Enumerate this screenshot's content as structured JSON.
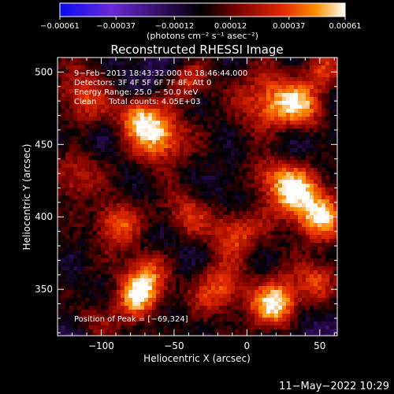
{
  "chart_data": {
    "type": "heatmap",
    "title": "Reconstructed RHESSI Image",
    "xlabel": "Heliocentric X (arcsec)",
    "ylabel": "Heliocentric Y (arcsec)",
    "xlim": [
      -130,
      62
    ],
    "ylim": [
      318,
      510
    ],
    "x_ticks": [
      -100,
      -50,
      0,
      50
    ],
    "x_tick_labels": [
      "−100",
      "−50",
      "0",
      "50"
    ],
    "y_ticks": [
      350,
      400,
      450,
      500
    ],
    "y_tick_labels": [
      "350",
      "400",
      "450",
      "500"
    ],
    "colorbar": {
      "ticks": [
        -0.00061,
        -0.00037,
        -0.00012,
        0.00012,
        0.00037,
        0.00061
      ],
      "tick_labels": [
        "−0.00061",
        "−0.00037",
        "−0.00012",
        "0.00012",
        "0.00037",
        "0.00061"
      ],
      "units_label": "(photons cm⁻² s⁻¹ asec⁻²)",
      "colors": [
        "#0a0af0",
        "#6a2ad8",
        "#1c0a38",
        "#000000",
        "#7a0000",
        "#e02800",
        "#ff9000",
        "#ffffff"
      ]
    },
    "annotations": [
      "9−Feb−2013 18:43:32.000 to 18:46:44.000",
      "Detectors: 3F 4F 5F 6F 7F 8F, Att 0",
      "Energy Range: 25.0 − 50.0 keV",
      "Clean     Total counts: 4.05E+03"
    ],
    "peak_label": "Position of Peak = [−69,324]",
    "peak_position": [
      -69,
      324
    ],
    "timestamp": "11−May−2022 10:29"
  }
}
